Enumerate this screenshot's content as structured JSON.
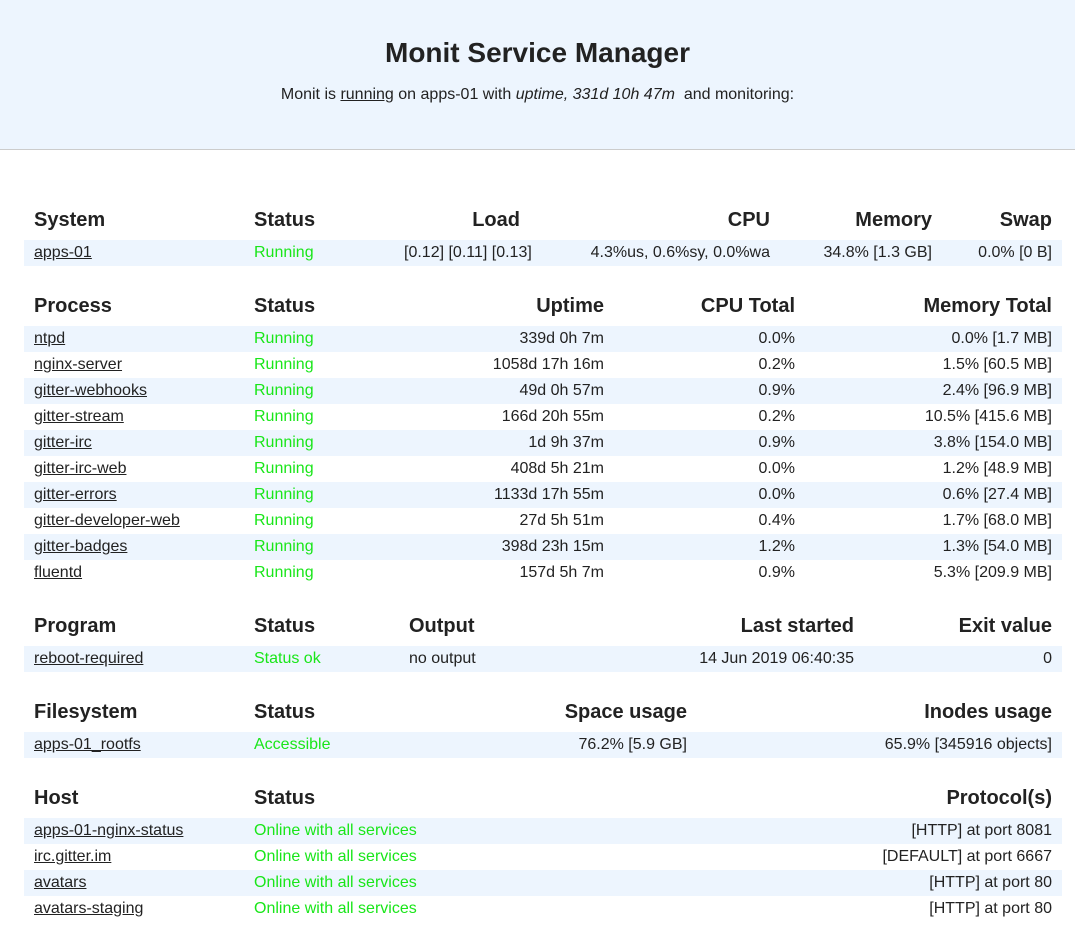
{
  "header": {
    "title": "Monit Service Manager",
    "status_line": {
      "prefix": "Monit is",
      "state": "running",
      "middle": "on apps-01 with",
      "uptime": "uptime, 331d 10h 47m",
      "suffix": "and monitoring:"
    }
  },
  "tables": [
    {
      "columns": [
        "System",
        "Status",
        "Load",
        "CPU",
        "Memory",
        "Swap"
      ],
      "rows": [
        [
          "apps-01",
          "Running",
          "[0.12] [0.11] [0.13]",
          "4.3%us, 0.6%sy, 0.0%wa",
          "34.8% [1.3 GB]",
          "0.0% [0 B]"
        ]
      ]
    },
    {
      "columns": [
        "Process",
        "Status",
        "Uptime",
        "CPU Total",
        "Memory Total"
      ],
      "rows": [
        [
          "ntpd",
          "Running",
          "339d 0h 7m",
          "0.0%",
          "0.0% [1.7 MB]"
        ],
        [
          "nginx-server",
          "Running",
          "1058d 17h 16m",
          "0.2%",
          "1.5% [60.5 MB]"
        ],
        [
          "gitter-webhooks",
          "Running",
          "49d 0h 57m",
          "0.9%",
          "2.4% [96.9 MB]"
        ],
        [
          "gitter-stream",
          "Running",
          "166d 20h 55m",
          "0.2%",
          "10.5% [415.6 MB]"
        ],
        [
          "gitter-irc",
          "Running",
          "1d 9h 37m",
          "0.9%",
          "3.8% [154.0 MB]"
        ],
        [
          "gitter-irc-web",
          "Running",
          "408d 5h 21m",
          "0.0%",
          "1.2% [48.9 MB]"
        ],
        [
          "gitter-errors",
          "Running",
          "1133d 17h 55m",
          "0.0%",
          "0.6% [27.4 MB]"
        ],
        [
          "gitter-developer-web",
          "Running",
          "27d 5h 51m",
          "0.4%",
          "1.7% [68.0 MB]"
        ],
        [
          "gitter-badges",
          "Running",
          "398d 23h 15m",
          "1.2%",
          "1.3% [54.0 MB]"
        ],
        [
          "fluentd",
          "Running",
          "157d 5h 7m",
          "0.9%",
          "5.3% [209.9 MB]"
        ]
      ]
    },
    {
      "columns": [
        "Program",
        "Status",
        "Output",
        "Last started",
        "Exit value"
      ],
      "rows": [
        [
          "reboot-required",
          "Status ok",
          "no output",
          "14 Jun 2019 06:40:35",
          "0"
        ]
      ]
    },
    {
      "columns": [
        "Filesystem",
        "Status",
        "Space usage",
        "Inodes usage"
      ],
      "rows": [
        [
          "apps-01_rootfs",
          "Accessible",
          "76.2% [5.9 GB]",
          "65.9% [345916 objects]"
        ]
      ]
    },
    {
      "columns": [
        "Host",
        "Status",
        "Protocol(s)"
      ],
      "rows": [
        [
          "apps-01-nginx-status",
          "Online with all services",
          "[HTTP] at port 8081"
        ],
        [
          "irc.gitter.im",
          "Online with all services",
          "[DEFAULT] at port 6667"
        ],
        [
          "avatars",
          "Online with all services",
          "[HTTP] at port 80"
        ],
        [
          "avatars-staging",
          "Online with all services",
          "[HTTP] at port 80"
        ]
      ]
    }
  ]
}
